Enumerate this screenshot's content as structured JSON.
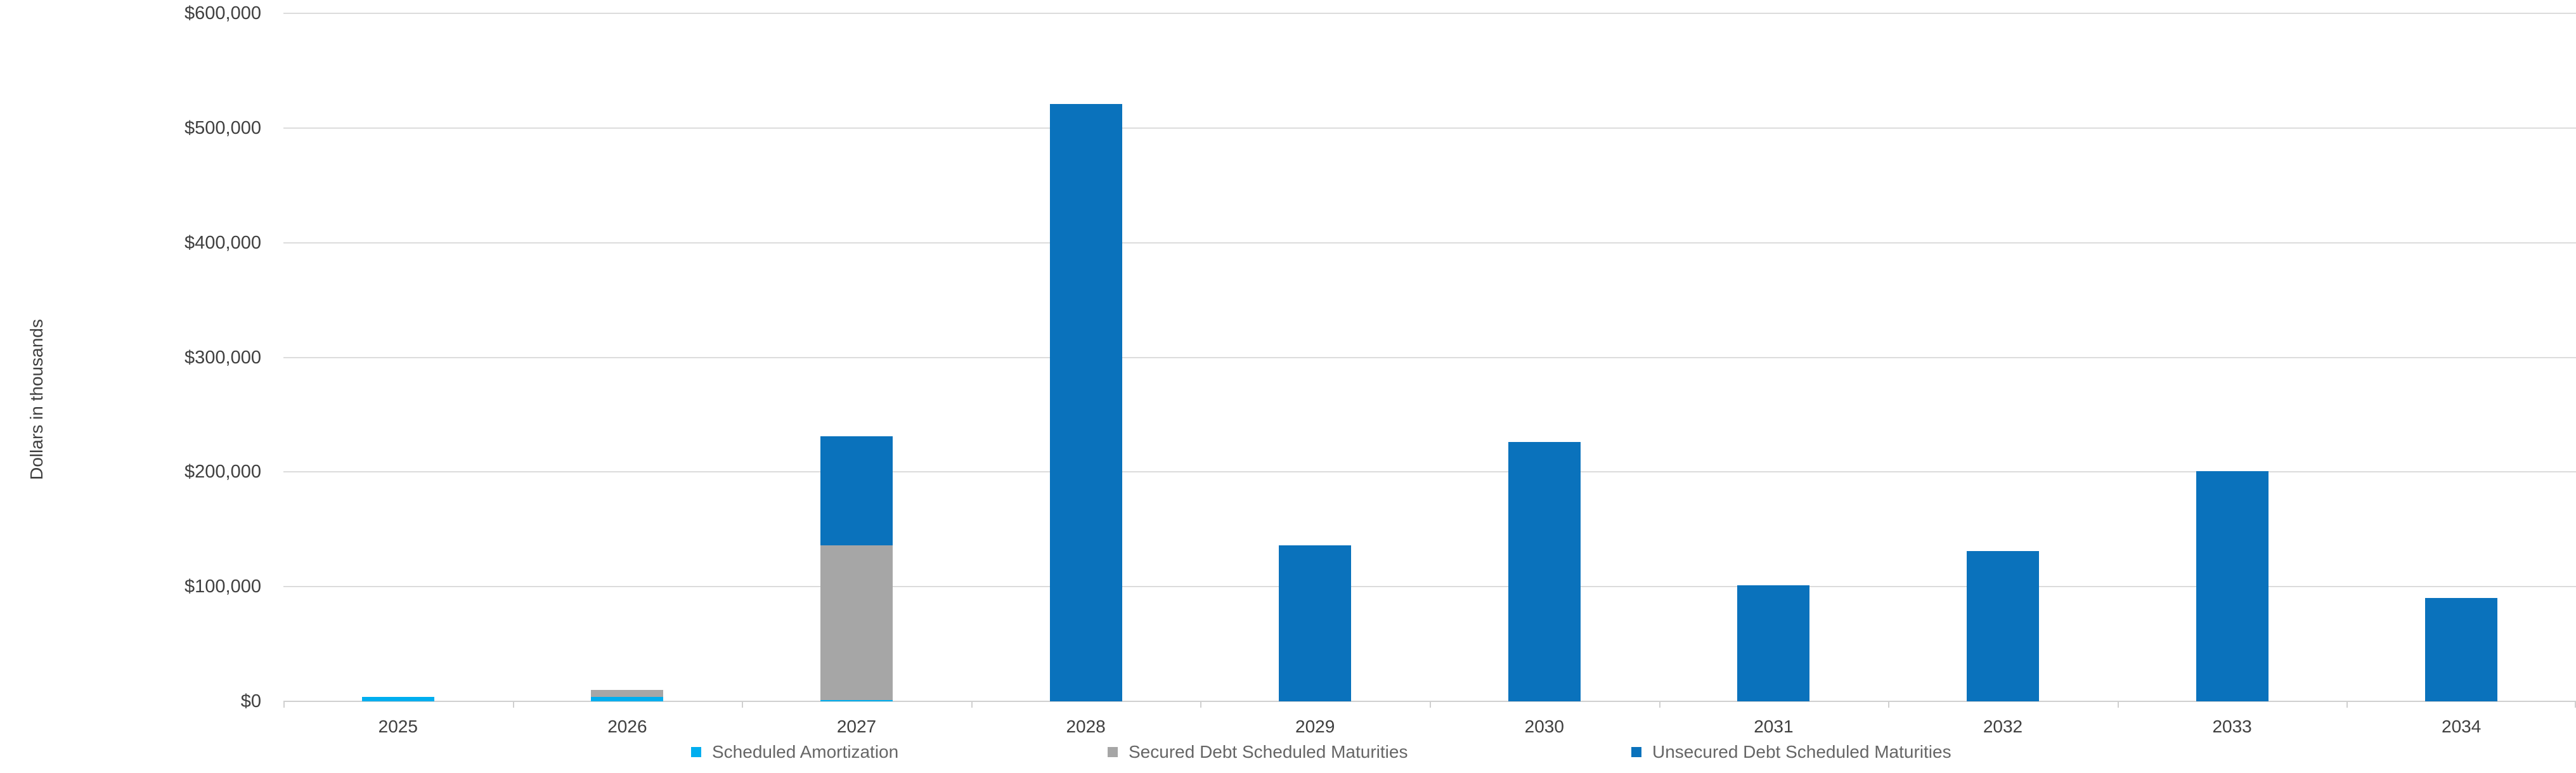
{
  "chart_data": {
    "type": "bar",
    "stacked": true,
    "title": "",
    "xlabel": "",
    "ylabel": "Dollars in thousands",
    "categories": [
      "2025",
      "2026",
      "2027",
      "2028",
      "2029",
      "2030",
      "2031",
      "2032",
      "2033",
      "2034"
    ],
    "series": [
      {
        "name": "Scheduled Amortization",
        "color": "#00aeef",
        "values": [
          4000,
          4000,
          1000,
          0,
          0,
          0,
          0,
          0,
          0,
          0
        ]
      },
      {
        "name": "Secured Debt Scheduled Maturities",
        "color": "#a6a6a6",
        "values": [
          0,
          6000,
          135000,
          0,
          0,
          0,
          0,
          0,
          0,
          0
        ]
      },
      {
        "name": "Unsecured Debt Scheduled Maturities",
        "color": "#0a72bc",
        "values": [
          0,
          0,
          95000,
          521000,
          136000,
          226000,
          101000,
          131000,
          201000,
          90000
        ]
      }
    ],
    "ylim": [
      0,
      600000
    ],
    "y_ticks": [
      {
        "value": 0,
        "label": "$0"
      },
      {
        "value": 100000,
        "label": "$100,000"
      },
      {
        "value": 200000,
        "label": "$200,000"
      },
      {
        "value": 300000,
        "label": "$300,000"
      },
      {
        "value": 400000,
        "label": "$400,000"
      },
      {
        "value": 500000,
        "label": "$500,000"
      },
      {
        "value": 600000,
        "label": "$600,000"
      }
    ],
    "grid": true,
    "legend_position": "bottom"
  }
}
